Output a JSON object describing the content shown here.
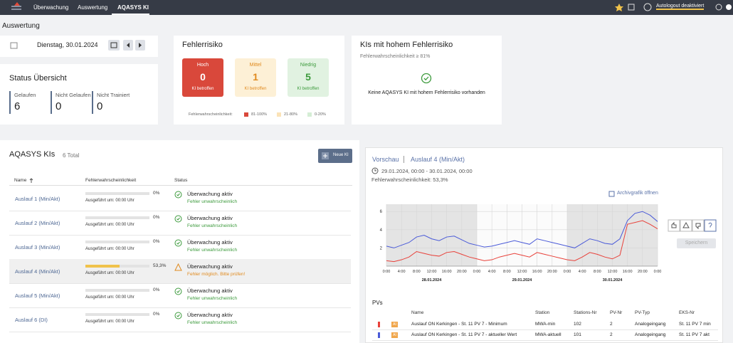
{
  "nav": {
    "items": [
      "Überwachung",
      "Auswertung",
      "AQASYS KI"
    ],
    "autologout": "Autologout deaktiviert"
  },
  "page_title": "Auswertung",
  "date": "Dienstag, 30.01.2024",
  "status": {
    "title": "Status Übersicht",
    "items": [
      {
        "label": "Gelaufen",
        "value": 6
      },
      {
        "label": "Nicht Gelaufen",
        "value": 0
      },
      {
        "label": "Nicht Trainiert",
        "value": 0
      }
    ]
  },
  "risk": {
    "title": "Fehlerrisiko",
    "boxes": [
      {
        "label": "Hoch",
        "count": 0,
        "note": "KI betroffen",
        "bg": "#d9483b",
        "fg": "#ffffff"
      },
      {
        "label": "Mittel",
        "count": 1,
        "note": "KI betroffen",
        "bg": "#fdf0d6",
        "fg": "#e08a1e"
      },
      {
        "label": "Niedrig",
        "count": 5,
        "note": "KI betroffen",
        "bg": "#e1f2e1",
        "fg": "#3c9a3c"
      }
    ],
    "legend_label": "Fehlerwahrscheinlichkeit:",
    "legend": [
      {
        "label": "81-100%",
        "color": "#d9483b"
      },
      {
        "label": "21-80%",
        "color": "#fbe3b8"
      },
      {
        "label": "0-20%",
        "color": "#d5eed5"
      }
    ]
  },
  "high_risk": {
    "title": "KIs mit hohem Fehlerrisiko",
    "subtitle": "Fehlerwahrscheinlichkeit ≥ 81%",
    "message": "Keine AQASYS KI mit hohem Fehlerrisiko vorhanden"
  },
  "ki_list": {
    "title": "AQASYS KIs",
    "total": "6 Total",
    "button": "Neue KI",
    "columns": [
      "Name",
      "Fehlerwahrscheinlichkeit",
      "Status"
    ],
    "rows": [
      {
        "name": "Auslauf 1 (Min/Akt)",
        "probability": 0,
        "probability_label": "0%",
        "executed": "Ausgeführt um: 00:00 Uhr",
        "status": "Überwachung aktiv",
        "note": "Fehler unwahrscheinlich",
        "warn": false
      },
      {
        "name": "Auslauf 2 (Min/Akt)",
        "probability": 0,
        "probability_label": "0%",
        "executed": "Ausgeführt um: 00:00 Uhr",
        "status": "Überwachung aktiv",
        "note": "Fehler unwahrscheinlich",
        "warn": false
      },
      {
        "name": "Auslauf 3 (Min/Akt)",
        "probability": 0,
        "probability_label": "0%",
        "executed": "Ausgeführt um: 00:00 Uhr",
        "status": "Überwachung aktiv",
        "note": "Fehler unwahrscheinlich",
        "warn": false
      },
      {
        "name": "Auslauf 4 (Min/Akt)",
        "probability": 53.3,
        "probability_label": "53,3%",
        "executed": "Ausgeführt um: 00:00 Uhr",
        "status": "Überwachung aktiv",
        "note": "Fehler möglich. Bitte prüfen!",
        "warn": true
      },
      {
        "name": "Auslauf 5 (Min/Akt)",
        "probability": 0,
        "probability_label": "0%",
        "executed": "Ausgeführt um: 00:00 Uhr",
        "status": "Überwachung aktiv",
        "note": "Fehler unwahrscheinlich",
        "warn": false
      },
      {
        "name": "Auslauf 6 (DI)",
        "probability": 0,
        "probability_label": "0%",
        "executed": "Ausgeführt um: 00:00 Uhr",
        "status": "Überwachung aktiv",
        "note": "Fehler unwahrscheinlich",
        "warn": false
      }
    ]
  },
  "preview": {
    "label": "Vorschau",
    "ki": "Auslauf 4 (Min/Akt)",
    "range": "29.01.2024, 00:00 - 30.01.2024, 00:00",
    "probability": "Fehlerwahrscheinlichkeit: 53,3%",
    "archive_link": "Archivgrafik öffnen",
    "save": "Speichern"
  },
  "chart_data": {
    "type": "line",
    "x": [
      0,
      2,
      4,
      6,
      8,
      10,
      12,
      14,
      16,
      18,
      20,
      22,
      24,
      26,
      28,
      30,
      32,
      34,
      36,
      38,
      40,
      42,
      44,
      46,
      48,
      50,
      52,
      54,
      56,
      58,
      60,
      62,
      64,
      66,
      68,
      70,
      72
    ],
    "xlim": [
      0,
      72
    ],
    "xticks": [
      {
        "value": 0,
        "label": "0:00"
      },
      {
        "value": 4,
        "label": "4:00"
      },
      {
        "value": 8,
        "label": "8:00"
      },
      {
        "value": 12,
        "label": "12:00"
      },
      {
        "value": 16,
        "label": "16:00"
      },
      {
        "value": 20,
        "label": "20:00"
      },
      {
        "value": 24,
        "label": "0:00"
      },
      {
        "value": 28,
        "label": "4:00"
      },
      {
        "value": 32,
        "label": "8:00"
      },
      {
        "value": 36,
        "label": "12:00"
      },
      {
        "value": 40,
        "label": "16:00"
      },
      {
        "value": 44,
        "label": "20:00"
      },
      {
        "value": 48,
        "label": "0:00"
      },
      {
        "value": 52,
        "label": "4:00"
      },
      {
        "value": 56,
        "label": "8:00"
      },
      {
        "value": 60,
        "label": "12:00"
      },
      {
        "value": 64,
        "label": "16:00"
      },
      {
        "value": 68,
        "label": "20:00"
      },
      {
        "value": 72,
        "label": "0:00"
      }
    ],
    "date_labels": [
      {
        "value": 12,
        "label": "28.01.2024"
      },
      {
        "value": 36,
        "label": "29.01.2024"
      },
      {
        "value": 60,
        "label": "30.01.2024"
      }
    ],
    "ylim": [
      0,
      6.8
    ],
    "yticks": [
      2,
      4,
      6
    ],
    "grid": true,
    "shaded": [
      [
        0,
        24
      ],
      [
        48,
        72
      ]
    ],
    "series": [
      {
        "color": "#e8413a",
        "values": [
          0.6,
          0.5,
          0.7,
          1.0,
          1.6,
          1.4,
          1.2,
          1.1,
          1.5,
          1.6,
          1.3,
          1.0,
          0.8,
          0.6,
          0.7,
          1.0,
          1.2,
          1.4,
          1.2,
          1.0,
          1.5,
          1.3,
          1.1,
          0.9,
          0.7,
          0.6,
          1.0,
          1.5,
          1.3,
          1.0,
          0.8,
          1.2,
          4.6,
          4.8,
          5.0,
          4.6,
          4.1
        ]
      },
      {
        "color": "#4a5ad8",
        "values": [
          2.2,
          2.0,
          2.3,
          2.6,
          3.2,
          3.4,
          3.0,
          2.8,
          3.2,
          3.3,
          2.9,
          2.5,
          2.3,
          2.1,
          2.2,
          2.4,
          2.6,
          2.8,
          2.6,
          2.4,
          3.0,
          2.8,
          2.6,
          2.4,
          2.2,
          2.0,
          2.5,
          3.0,
          2.8,
          2.5,
          2.4,
          3.0,
          5.0,
          5.8,
          6.0,
          5.6,
          4.9
        ]
      }
    ]
  },
  "pv_table": {
    "title": "PVs",
    "columns": [
      "Name",
      "Station",
      "Stations-Nr",
      "PV-Nr",
      "PV-Typ",
      "EKS-Nr"
    ],
    "rows": [
      {
        "color": "#e8413a",
        "badge": "AI",
        "cells": [
          "Auslauf ON Kerkingen - St. 11 PV 7 - Minimum",
          "MWA-min",
          "102",
          "2",
          "Analogeingang",
          "St. 11 PV 7 min"
        ]
      },
      {
        "color": "#4a5ad8",
        "badge": "AI",
        "cells": [
          "Auslauf ON Kerkingen - St. 11 PV 7 - aktueller Wert",
          "MWA-aktuell",
          "101",
          "2",
          "Analogeingang",
          "St. 11 PV 7 akt"
        ]
      }
    ]
  }
}
